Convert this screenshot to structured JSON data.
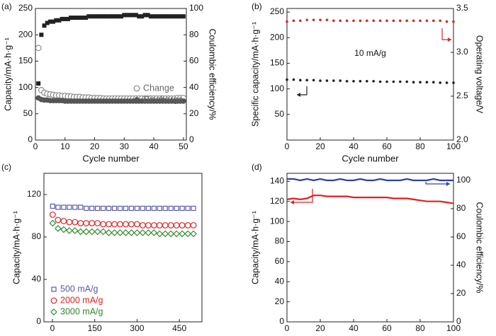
{
  "chart_data": [
    {
      "type": "scatter",
      "label": "(a)",
      "xlabel": "Cycle number",
      "ylabel": "Capacity/mA·h·g⁻¹",
      "y2label": "Coulombic efficiency/%",
      "xlim": [
        0,
        51
      ],
      "xticks": [
        0,
        10,
        20,
        30,
        40,
        50
      ],
      "ylim": [
        0,
        250
      ],
      "yticks": [
        0,
        50,
        100,
        150,
        200,
        250
      ],
      "y2lim": [
        0,
        100
      ],
      "y2ticks": [
        0,
        20,
        40,
        60,
        80,
        100
      ],
      "legend": "center right",
      "x": [
        1,
        2,
        3,
        4,
        5,
        6,
        7,
        8,
        9,
        10,
        11,
        12,
        13,
        14,
        15,
        16,
        17,
        18,
        19,
        20,
        21,
        22,
        23,
        24,
        25,
        26,
        27,
        28,
        29,
        30,
        31,
        32,
        33,
        34,
        35,
        36,
        37,
        38,
        39,
        40,
        41,
        42,
        43,
        44,
        45,
        46,
        47,
        48,
        49,
        50
      ],
      "series": [
        {
          "axis": "y2",
          "color": "#222222",
          "marker": "square",
          "values": [
            43,
            80,
            87,
            89,
            90,
            90,
            91,
            91,
            92,
            92,
            92,
            93,
            93,
            93,
            93,
            93,
            93,
            94,
            94,
            94,
            94,
            94,
            94,
            94,
            94,
            94,
            94,
            94,
            94,
            95,
            95,
            95,
            95,
            95,
            94,
            94,
            95,
            95,
            94,
            94,
            94,
            94,
            94,
            94,
            94,
            94,
            94,
            94,
            94,
            94
          ]
        },
        {
          "name": "Change",
          "color": "#8a8a8a",
          "marker": "circle-open",
          "values": [
            175,
            95,
            90,
            88,
            87,
            86,
            85,
            85,
            84,
            84,
            83,
            83,
            82,
            82,
            82,
            81,
            81,
            81,
            80,
            80,
            80,
            80,
            79,
            79,
            79,
            79,
            79,
            79,
            79,
            79,
            79,
            79,
            79,
            79,
            79,
            79,
            79,
            79,
            79,
            79,
            79,
            79,
            79,
            79,
            79,
            79,
            79,
            80,
            80,
            80
          ]
        },
        {
          "name": "Discharge",
          "color": "#555555",
          "marker": "circle",
          "values": [
            80,
            77,
            76,
            76,
            75,
            75,
            75,
            75,
            75,
            74,
            74,
            74,
            74,
            74,
            74,
            74,
            74,
            74,
            74,
            74,
            74,
            74,
            74,
            74,
            74,
            74,
            74,
            74,
            74,
            74,
            74,
            74,
            74,
            74,
            74,
            74,
            74,
            74,
            74,
            74,
            74,
            74,
            74,
            74,
            74,
            74,
            74,
            74,
            74,
            74
          ]
        }
      ]
    },
    {
      "type": "scatter",
      "label": "(b)",
      "xlabel": "Cycle number",
      "ylabel": "Specific capacity/mA·h·g⁻¹",
      "y2label": "Operating voltage/V",
      "annotation": "10 mA/g",
      "xlim": [
        0,
        100
      ],
      "xticks": [
        0,
        20,
        40,
        60,
        80,
        100
      ],
      "ylim": [
        0,
        257
      ],
      "yticks": [
        50,
        100,
        150,
        200,
        250
      ],
      "y2lim": [
        2.0,
        3.5
      ],
      "y2ticks": [
        {
          "value": 2.0,
          "label": "2.0"
        },
        {
          "value": 2.5,
          "label": "2.5"
        },
        {
          "value": 3.0,
          "label": "3.0"
        },
        {
          "value": 3.5,
          "label": "3.5"
        }
      ],
      "x": [
        0,
        4,
        8,
        12,
        16,
        20,
        24,
        28,
        32,
        36,
        40,
        44,
        48,
        52,
        56,
        60,
        64,
        68,
        72,
        76,
        80,
        84,
        88,
        92,
        96,
        100
      ],
      "series": [
        {
          "color": "#222222",
          "marker": "dot",
          "values": [
            118,
            118,
            117,
            117,
            117,
            116,
            116,
            116,
            116,
            115,
            115,
            115,
            115,
            115,
            114,
            114,
            114,
            114,
            114,
            113,
            113,
            113,
            113,
            112,
            112,
            112
          ]
        },
        {
          "axis": "y2",
          "color": "#d62728",
          "marker": "dot",
          "values": [
            3.35,
            3.36,
            3.36,
            3.37,
            3.37,
            3.37,
            3.37,
            3.36,
            3.36,
            3.36,
            3.36,
            3.36,
            3.36,
            3.36,
            3.36,
            3.36,
            3.36,
            3.36,
            3.36,
            3.36,
            3.36,
            3.36,
            3.36,
            3.36,
            3.35,
            3.35
          ]
        }
      ]
    },
    {
      "type": "scatter",
      "label": "(c)",
      "xlabel": "Cycle number",
      "ylabel": "Capacity/mA·h·g⁻¹",
      "xlim": [
        -30,
        530
      ],
      "xticks": [
        0,
        150,
        300,
        450
      ],
      "ylim": [
        0,
        140
      ],
      "yticks": [
        0,
        40,
        80,
        120
      ],
      "legend": "lower left",
      "x": [
        1,
        20,
        40,
        60,
        80,
        100,
        120,
        140,
        160,
        180,
        200,
        220,
        240,
        260,
        280,
        300,
        320,
        340,
        360,
        380,
        400,
        420,
        440,
        460,
        480,
        500
      ],
      "series": [
        {
          "name": "500 mA/g",
          "color": "#5a5aa8",
          "marker": "square-open",
          "values": [
            109,
            108,
            108,
            108,
            108,
            108,
            107,
            107,
            107,
            107,
            107,
            107,
            107,
            107,
            107,
            107,
            107,
            107,
            107,
            107,
            107,
            107,
            107,
            107,
            107,
            107
          ]
        },
        {
          "name": "2000 mA/g",
          "color": "#e02020",
          "marker": "circle-open",
          "values": [
            101,
            96,
            95,
            94,
            94,
            93,
            93,
            93,
            93,
            92,
            92,
            92,
            92,
            92,
            92,
            92,
            91,
            91,
            91,
            91,
            91,
            91,
            91,
            91,
            91,
            91
          ]
        },
        {
          "name": "3000 mA/g",
          "color": "#2e8b2e",
          "marker": "diamond-open",
          "values": [
            93,
            88,
            87,
            86,
            86,
            85,
            85,
            85,
            85,
            85,
            84,
            84,
            84,
            84,
            84,
            84,
            84,
            84,
            84,
            83,
            83,
            83,
            83,
            83,
            83,
            83
          ]
        }
      ]
    },
    {
      "type": "line",
      "label": "(d)",
      "xlabel": "Cycle number",
      "ylabel": "Capacity/mA·h·g⁻¹",
      "y2label": "Coulombic efficiency/%",
      "xlim": [
        0,
        100
      ],
      "xticks": [
        0,
        20,
        40,
        60,
        80,
        100
      ],
      "ylim": [
        0,
        148
      ],
      "yticks": [
        0,
        20,
        40,
        60,
        80,
        100,
        120,
        140
      ],
      "y2lim": [
        0,
        105
      ],
      "y2ticks": [
        0,
        20,
        40,
        60,
        80,
        100
      ],
      "x": [
        0,
        4,
        8,
        12,
        16,
        20,
        24,
        28,
        32,
        36,
        40,
        44,
        48,
        52,
        56,
        60,
        64,
        68,
        72,
        76,
        80,
        84,
        88,
        92,
        96,
        100
      ],
      "series": [
        {
          "axis": "y2",
          "color": "#3040a0",
          "marker": "line",
          "values": [
            101,
            101,
            100,
            101,
            100,
            101,
            100,
            100,
            101,
            100,
            100,
            101,
            100,
            100,
            101,
            100,
            100,
            100,
            101,
            100,
            100,
            100,
            101,
            100,
            100,
            100
          ]
        },
        {
          "color": "#e02020",
          "marker": "line",
          "values": [
            122,
            123,
            122,
            123,
            126,
            126,
            125,
            125,
            125,
            125,
            124,
            124,
            124,
            124,
            124,
            124,
            123,
            123,
            123,
            122,
            121,
            120,
            120,
            120,
            119,
            118
          ]
        }
      ]
    }
  ]
}
